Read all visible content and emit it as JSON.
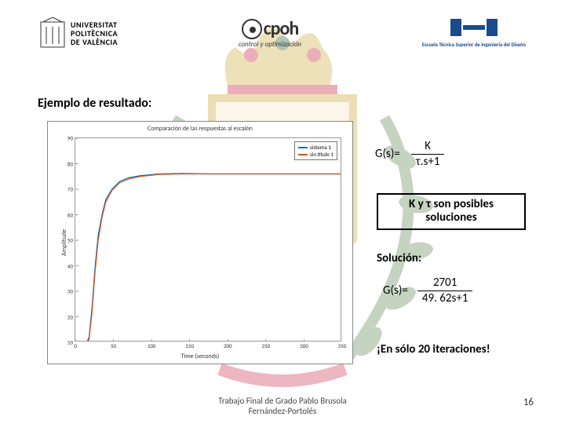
{
  "header": {
    "upv_line1": "UNIVERSITAT",
    "upv_line2": "POLITÈCNICA",
    "upv_line3": "DE VALÈNCIA",
    "cpoh_letters": "cpoh",
    "cpoh_sub": "control y optimización",
    "etsid_text": "Escuela Técnica Superior de Ingeniería del Diseño",
    "etsid_color": "#1a4b8c"
  },
  "title": "Ejemplo de resultado:",
  "chart": {
    "type": "line",
    "title": "Comparación de las respuestas al escalón",
    "xlabel": "Time (seconds)",
    "ylabel": "Amplitude",
    "xlim": [
      0,
      350
    ],
    "ylim": [
      10,
      90
    ],
    "xticks": [
      0,
      50,
      100,
      150,
      200,
      250,
      300,
      350
    ],
    "yticks": [
      10,
      20,
      30,
      40,
      50,
      60,
      70,
      80,
      90
    ],
    "background_color": "#ffffff",
    "border_color": "#999999",
    "series": [
      {
        "label": "sistema 1",
        "color": "#0072bd",
        "linewidth": 1.2,
        "data": [
          [
            0,
            10
          ],
          [
            10,
            10
          ],
          [
            15,
            10
          ],
          [
            18,
            12
          ],
          [
            22,
            24
          ],
          [
            26,
            40
          ],
          [
            30,
            52
          ],
          [
            35,
            60
          ],
          [
            40,
            66
          ],
          [
            48,
            70
          ],
          [
            58,
            73
          ],
          [
            70,
            74.5
          ],
          [
            85,
            75.3
          ],
          [
            110,
            76
          ],
          [
            140,
            76.2
          ],
          [
            180,
            76
          ],
          [
            220,
            76
          ],
          [
            260,
            76
          ],
          [
            300,
            76
          ],
          [
            350,
            76
          ]
        ]
      },
      {
        "label": "sin título 1",
        "color": "#d95319",
        "linewidth": 1.2,
        "data": [
          [
            0,
            10
          ],
          [
            10,
            10
          ],
          [
            15,
            10
          ],
          [
            18,
            11
          ],
          [
            22,
            22
          ],
          [
            26,
            38
          ],
          [
            30,
            50
          ],
          [
            35,
            59
          ],
          [
            40,
            65
          ],
          [
            48,
            69.5
          ],
          [
            58,
            72.5
          ],
          [
            70,
            74
          ],
          [
            85,
            75
          ],
          [
            110,
            75.8
          ],
          [
            140,
            76
          ],
          [
            180,
            76
          ],
          [
            220,
            76
          ],
          [
            260,
            76
          ],
          [
            300,
            76
          ],
          [
            350,
            76
          ]
        ]
      }
    ]
  },
  "formula1": {
    "lhs": "G(s)=",
    "num": "K",
    "den": "τ.s+1"
  },
  "boxed_line1": "K y τ son posibles",
  "boxed_line2": "soluciones",
  "solucion_label": "Solución:",
  "formula2": {
    "lhs": "G(s)=",
    "num": "2701",
    "den": "49. 62s+1"
  },
  "exclaim": "¡En sólo 20 iteraciones!",
  "footer_line1": "Trabajo Final de Grado Pablo Brusola",
  "footer_line2": "Fernández-Portolés",
  "pagenum": "16",
  "crest": {
    "crown_color": "#b8860b",
    "crown_jewels": [
      "#c41e3a",
      "#1e5631",
      "#c41e3a"
    ],
    "shield_border": "#c9a227",
    "shield_bg": "#f4e8c1",
    "wreath_color": "#4a7a3a"
  }
}
